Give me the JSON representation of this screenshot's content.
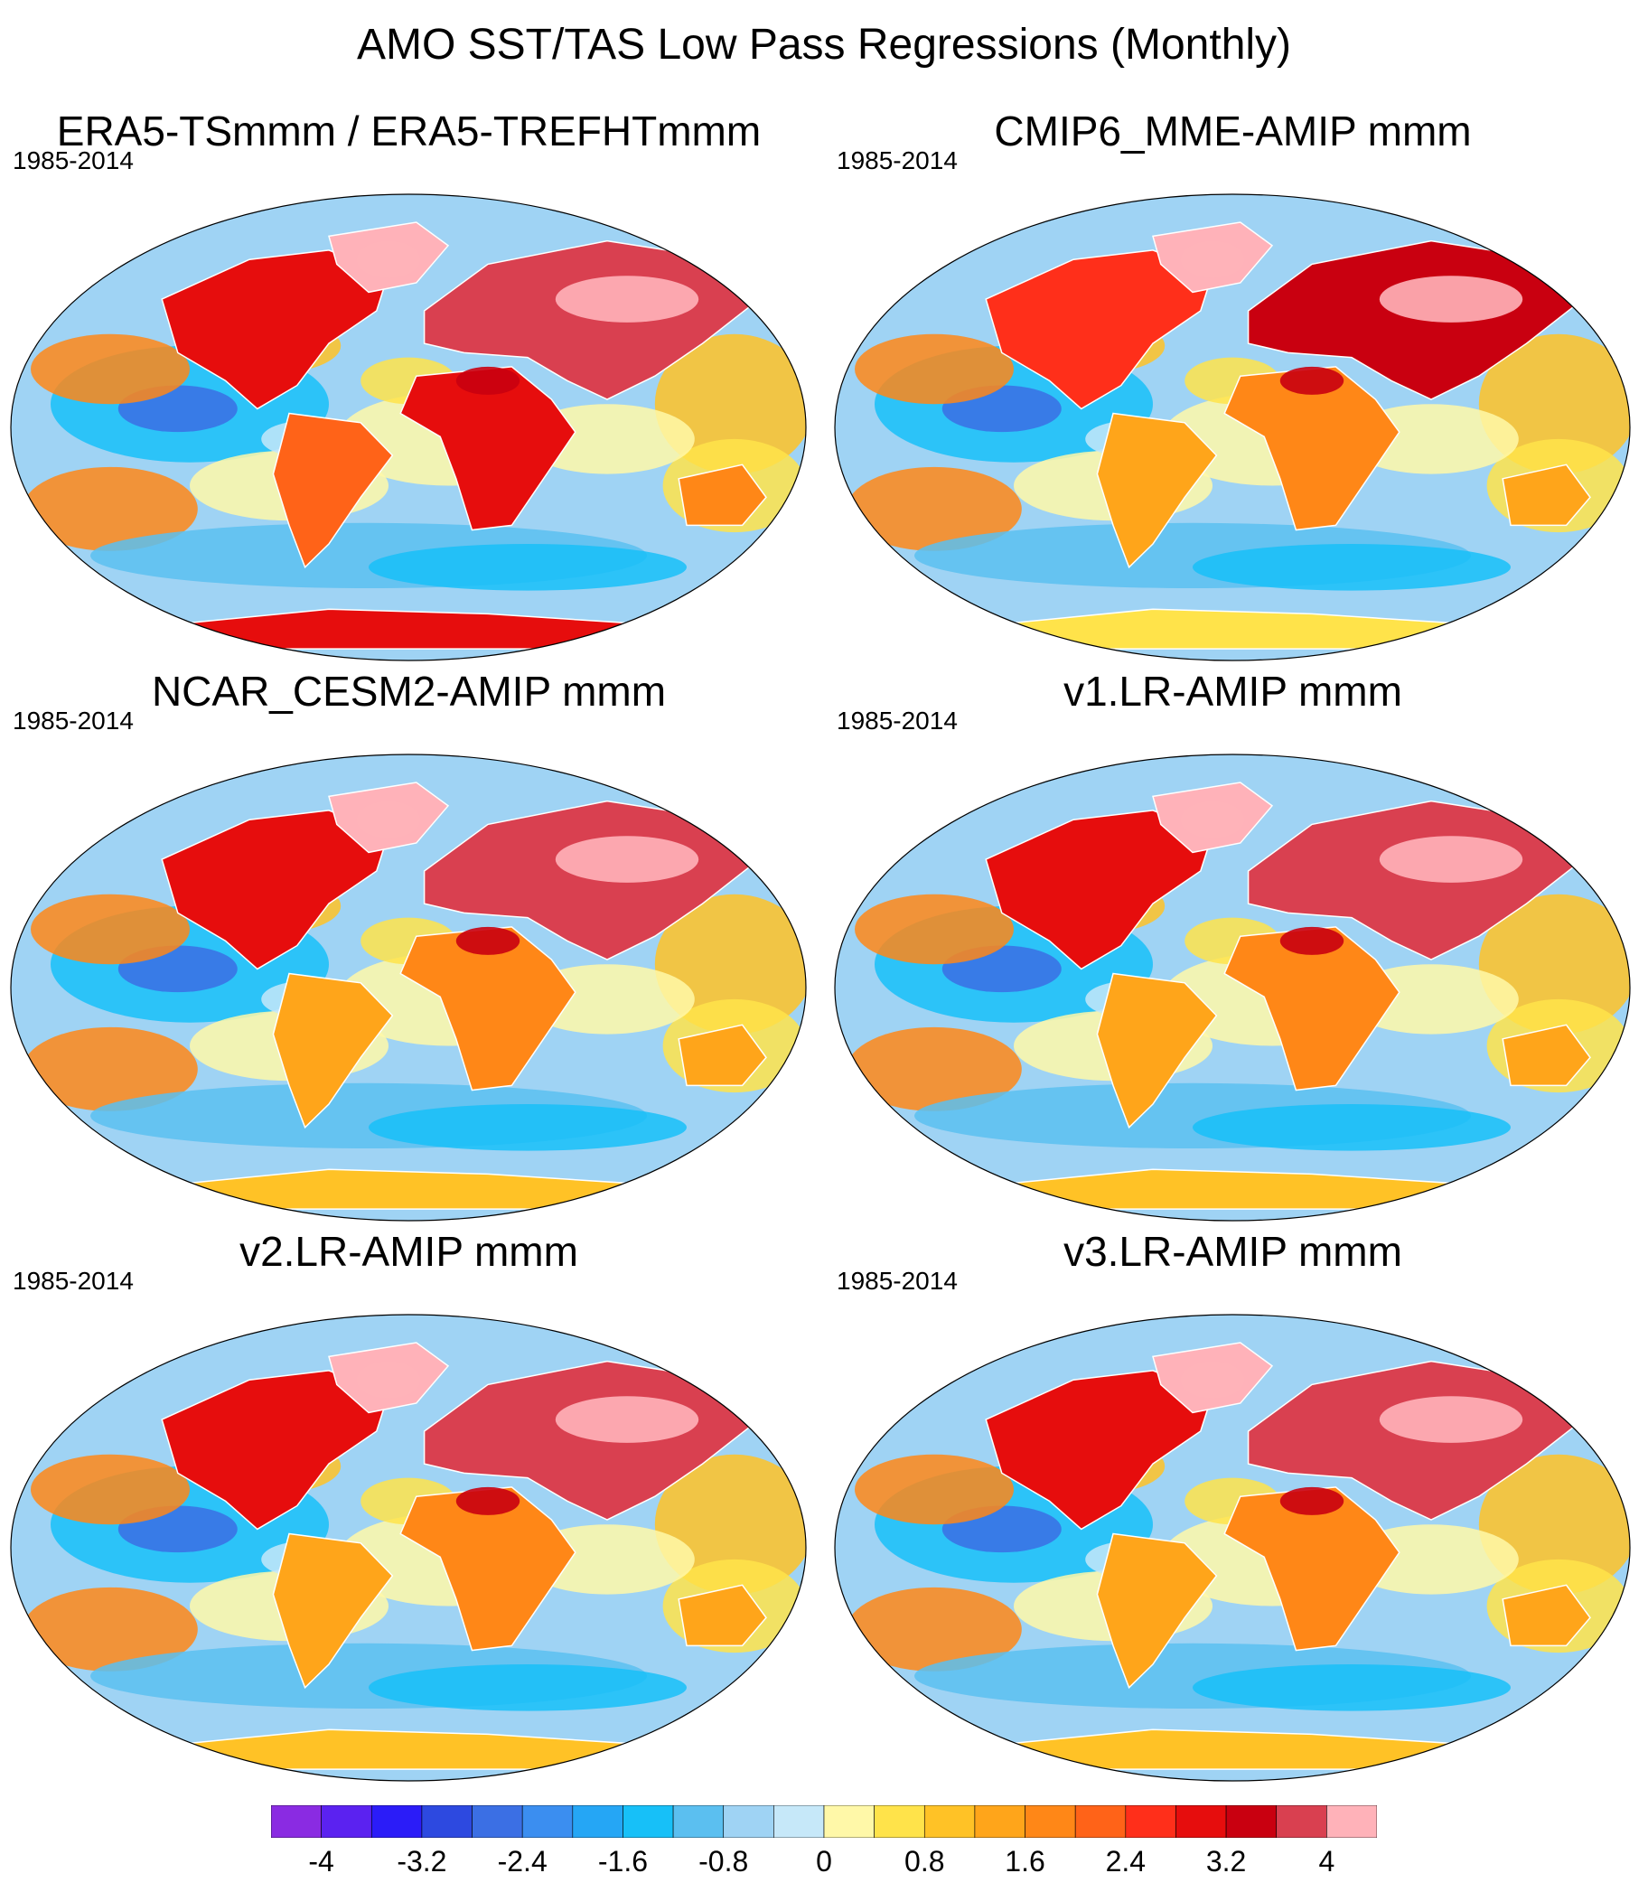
{
  "title": "AMO SST/TAS Low Pass Regressions (Monthly)",
  "panels": [
    {
      "title": "ERA5-TSmmm / ERA5-TREFHTmmm",
      "years": "1985-2014",
      "style": "obs"
    },
    {
      "title": "CMIP6_MME-AMIP  mmm",
      "years": "1985-2014",
      "style": "mme"
    },
    {
      "title": "NCAR_CESM2-AMIP  mmm",
      "years": "1985-2014",
      "style": "model"
    },
    {
      "title": "v1.LR-AMIP  mmm",
      "years": "1985-2014",
      "style": "model"
    },
    {
      "title": "v2.LR-AMIP  mmm",
      "years": "1985-2014",
      "style": "model"
    },
    {
      "title": "v3.LR-AMIP  mmm",
      "years": "1985-2014",
      "style": "model"
    }
  ],
  "colorbar": {
    "colors": [
      "#8a2be2",
      "#5b22f0",
      "#2b1cf8",
      "#2d49e0",
      "#3b6fe4",
      "#3b8ef0",
      "#25a6f5",
      "#17c0f8",
      "#5bbff0",
      "#9fd3f4",
      "#c6e8f9",
      "#fff8a8",
      "#ffe34a",
      "#ffc226",
      "#ffa51a",
      "#ff8717",
      "#ff6318",
      "#ff2f1a",
      "#e60d0d",
      "#c90010",
      "#d94050",
      "#ffb2b9"
    ],
    "labels": [
      "-4",
      "-3.2",
      "-2.4",
      "-1.6",
      "-0.8",
      "0",
      "0.8",
      "1.6",
      "2.4",
      "3.2",
      "4"
    ]
  }
}
